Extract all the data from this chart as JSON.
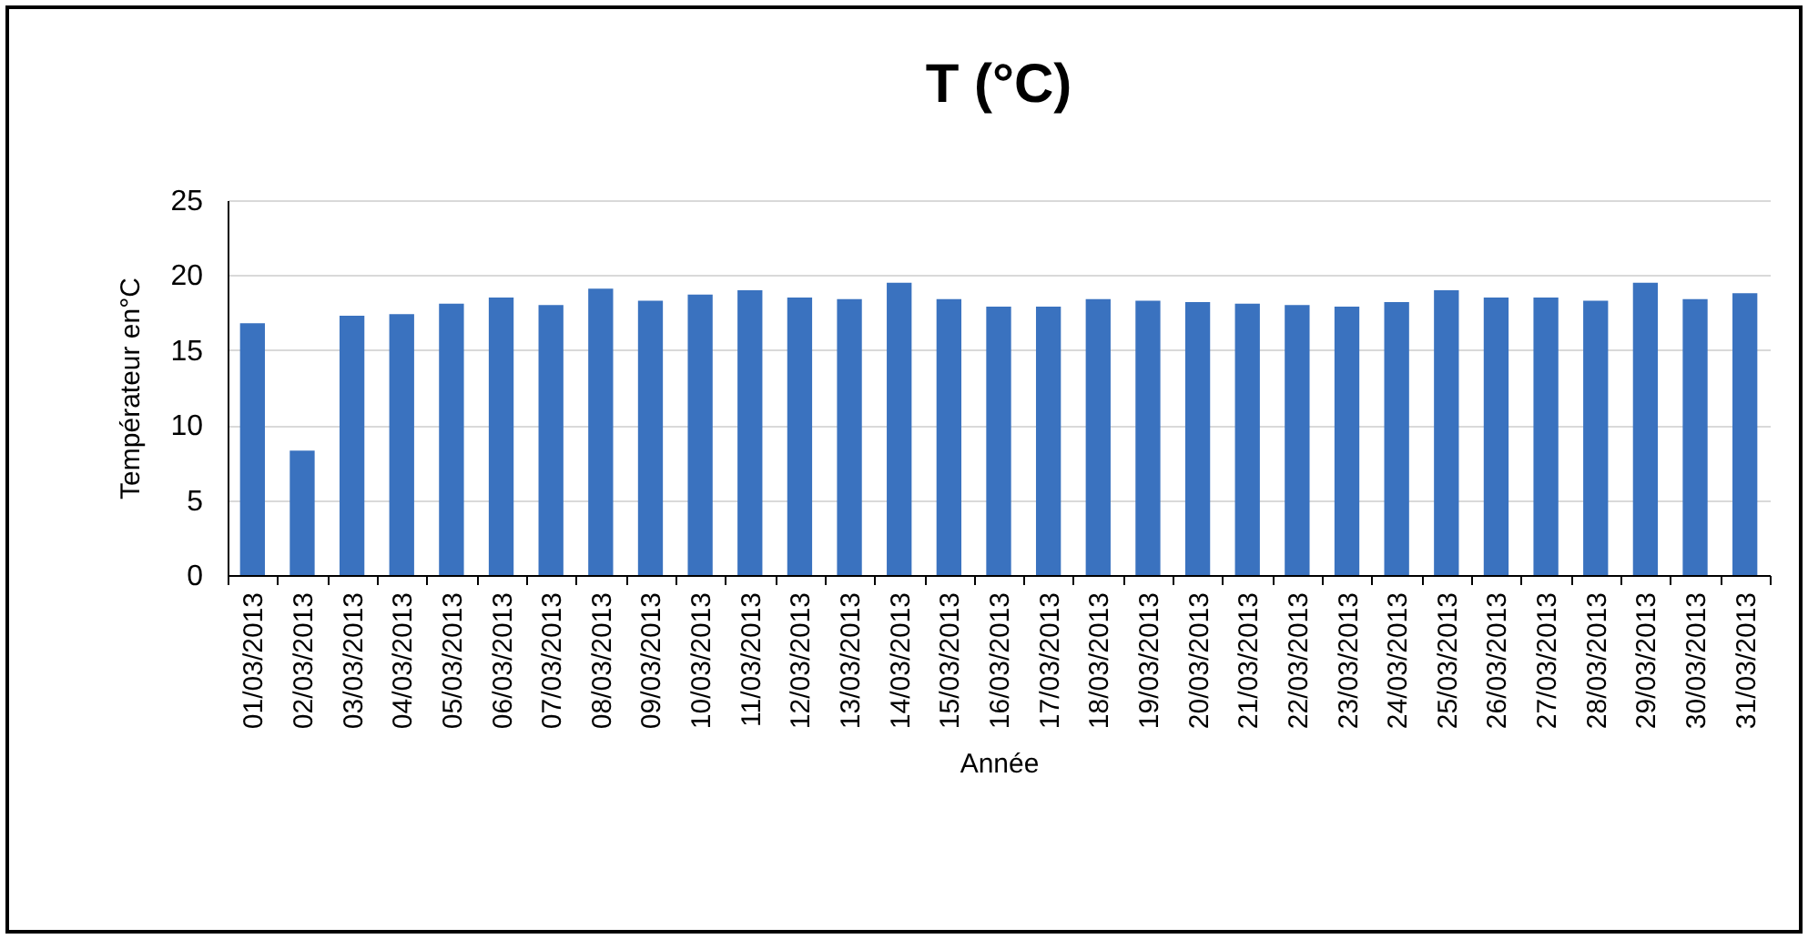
{
  "chart_data": {
    "type": "bar",
    "title": "T (°C)",
    "xlabel": "Année",
    "ylabel": "Températeur en°C",
    "categories": [
      "01/03/2013",
      "02/03/2013",
      "03/03/2013",
      "04/03/2013",
      "05/03/2013",
      "06/03/2013",
      "07/03/2013",
      "08/03/2013",
      "09/03/2013",
      "10/03/2013",
      "11/03/2013",
      "12/03/2013",
      "13/03/2013",
      "14/03/2013",
      "15/03/2013",
      "16/03/2013",
      "17/03/2013",
      "18/03/2013",
      "19/03/2013",
      "20/03/2013",
      "21/03/2013",
      "22/03/2013",
      "23/03/2013",
      "24/03/2013",
      "25/03/2013",
      "26/03/2013",
      "27/03/2013",
      "28/03/2013",
      "29/03/2013",
      "30/03/2013",
      "31/03/2013"
    ],
    "values": [
      16.8,
      8.3,
      17.3,
      17.4,
      18.1,
      18.5,
      18.0,
      19.1,
      18.3,
      18.7,
      19.0,
      18.5,
      18.4,
      19.5,
      18.4,
      17.9,
      17.9,
      18.4,
      18.3,
      18.2,
      18.1,
      18.0,
      17.9,
      18.2,
      19.0,
      18.5,
      18.5,
      18.3,
      19.5,
      18.4,
      18.8
    ],
    "color": "#3a72bf",
    "ylim": [
      0,
      25
    ],
    "yticks": [
      0,
      5,
      10,
      15,
      20,
      25
    ],
    "grid": "y"
  }
}
